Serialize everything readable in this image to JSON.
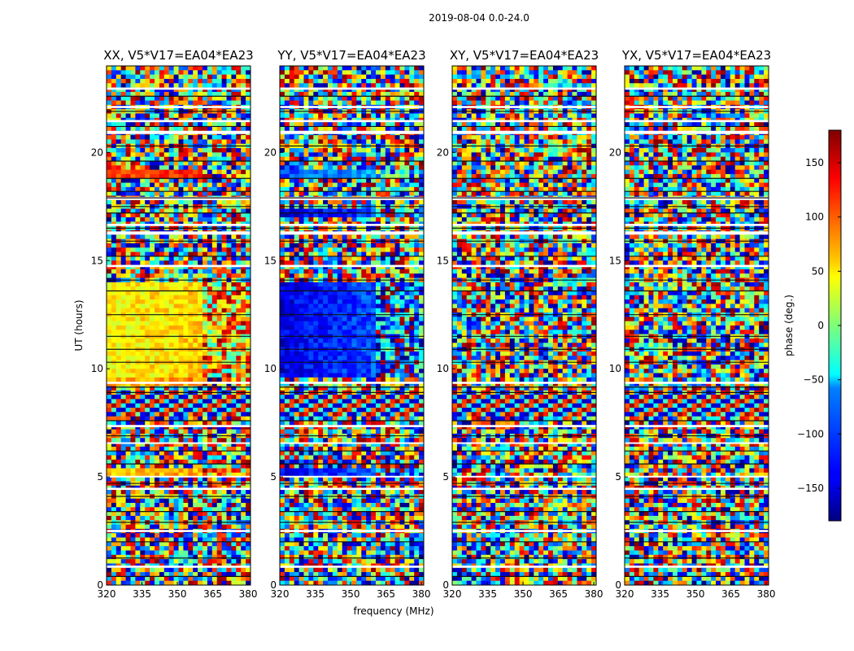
{
  "figure": {
    "suptitle": "2019-08-04 0.0-24.0"
  },
  "chart_data": {
    "type": "heatmap",
    "suptitle": "2019-08-04 0.0-24.0",
    "xlabel": "frequency (MHz)",
    "ylabel": "UT (hours)",
    "xlim": [
      320,
      381
    ],
    "ylim": [
      0,
      24
    ],
    "x_ticks": [
      "320",
      "335",
      "350",
      "365",
      "380"
    ],
    "y_ticks": [
      "0",
      "5",
      "10",
      "15",
      "20"
    ],
    "colorbar": {
      "label": "phase (deg.)",
      "colormap": "jet",
      "range": [
        -180,
        180
      ],
      "ticks": [
        "−150",
        "−100",
        "−50",
        "0",
        "50",
        "100",
        "150"
      ]
    },
    "panels": [
      {
        "title": "XX, V5*V17=EA04*EA23",
        "structure": "coherent phase near 50-100 deg at UT 5, 9-14, 19; noise elsewhere",
        "coherent_bands": [
          {
            "ut": [
              5.05,
              5.35
            ],
            "phase_deg": 60
          },
          {
            "ut": [
              9.2,
              9.6
            ],
            "phase_deg": 70
          },
          {
            "ut": [
              9.6,
              14.0
            ],
            "phase_deg": 45
          },
          {
            "ut": [
              18.9,
              19.2
            ],
            "phase_deg": 110
          }
        ]
      },
      {
        "title": "YY, V5*V17=EA04*EA23",
        "structure": "coherent phase near -140 deg at UT 5, 9-14, 17, 19",
        "coherent_bands": [
          {
            "ut": [
              5.05,
              5.35
            ],
            "phase_deg": -140
          },
          {
            "ut": [
              9.6,
              14.0
            ],
            "phase_deg": -145
          },
          {
            "ut": [
              17.0,
              17.3
            ],
            "phase_deg": -150
          },
          {
            "ut": [
              18.9,
              19.2
            ],
            "phase_deg": -110
          }
        ]
      },
      {
        "title": "XY, V5*V17=EA04*EA23",
        "structure": "mostly incoherent noise",
        "coherent_bands": []
      },
      {
        "title": "YX, V5*V17=EA04*EA23",
        "structure": "mostly incoherent noise",
        "coherent_bands": []
      }
    ]
  }
}
